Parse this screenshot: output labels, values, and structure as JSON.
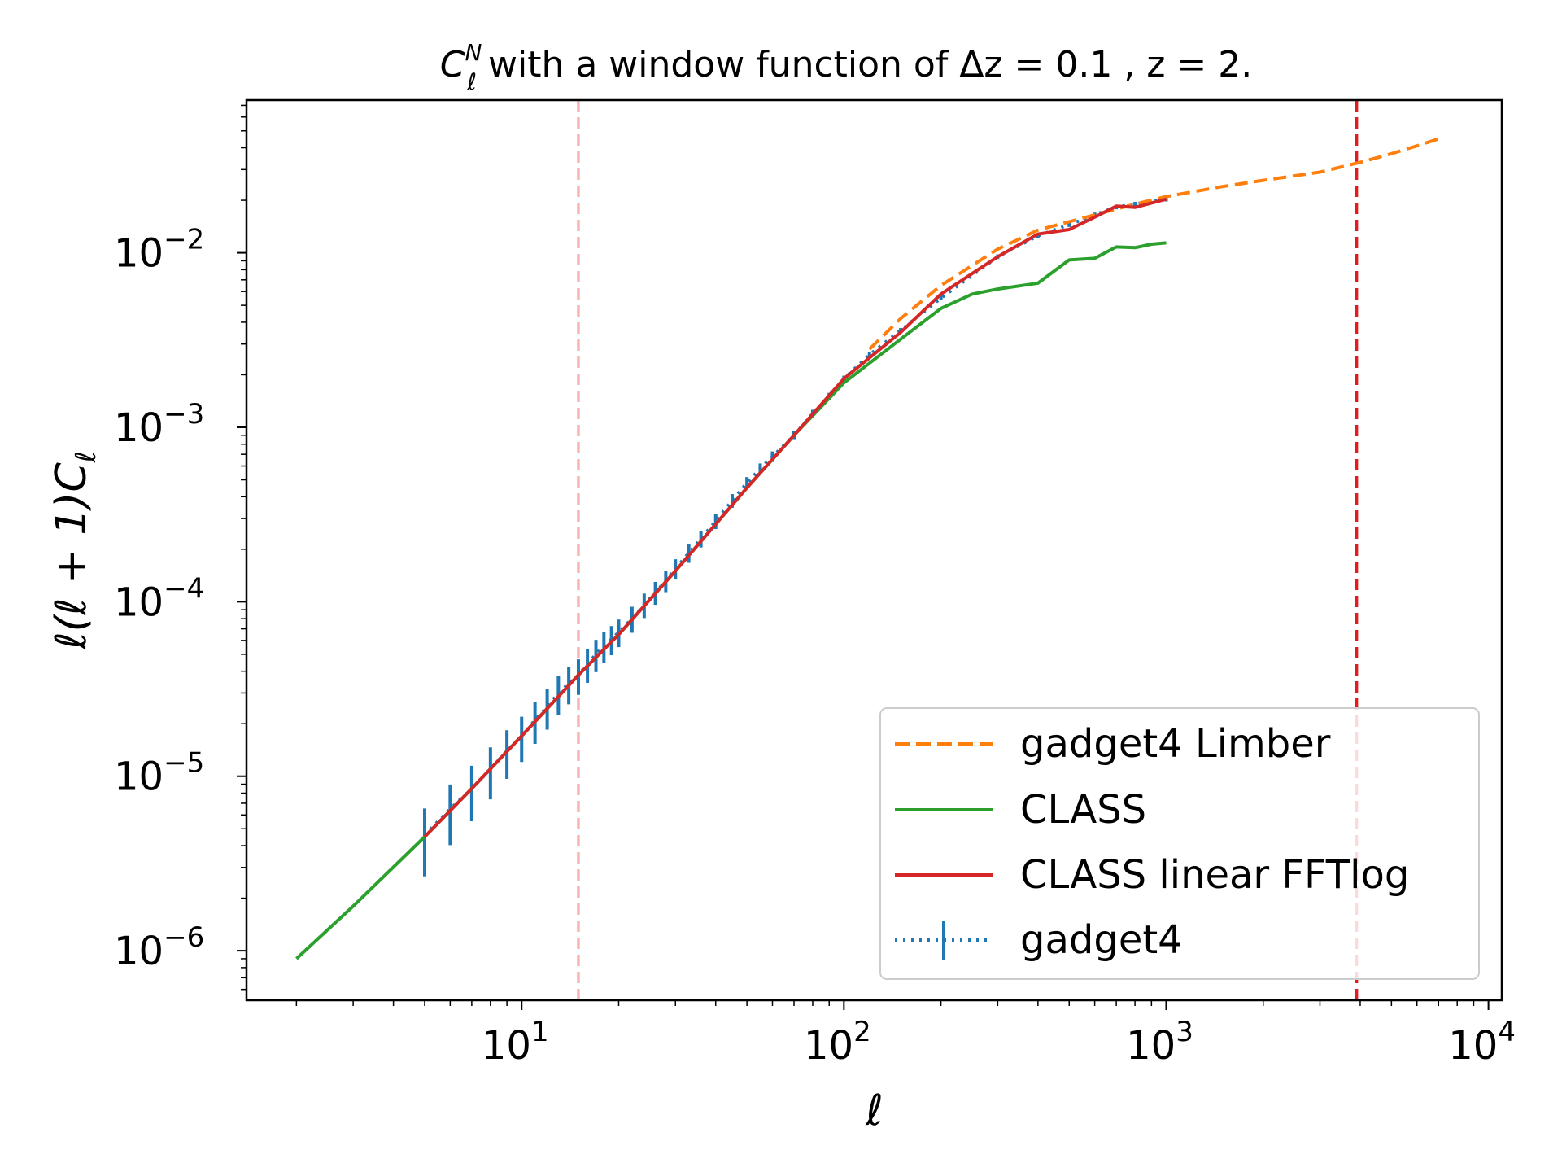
{
  "chart_data": {
    "type": "line",
    "title": "C_ℓ^N with a window function of Δz = 0.1 , z = 2.",
    "title_parts": {
      "symbol": "C",
      "superscript": "N",
      "subscript": "ℓ",
      "text1": "with a window function of",
      "dz": "Δz = 0.1",
      "sep": ",",
      "z": "z = 2."
    },
    "xlabel": "ℓ",
    "ylabel": "ℓ(ℓ + 1)C_ℓ",
    "ylabel_parts": {
      "main": "ℓ(ℓ + 1)C",
      "sub": "ℓ"
    },
    "xscale": "log",
    "yscale": "log",
    "xlim": [
      1.4,
      11000
    ],
    "ylim": [
      5.2e-07,
      0.075
    ],
    "x_ticks": [
      {
        "value": 10,
        "base": "10",
        "exp": "1"
      },
      {
        "value": 100,
        "base": "10",
        "exp": "2"
      },
      {
        "value": 1000,
        "base": "10",
        "exp": "3"
      },
      {
        "value": 10000,
        "base": "10",
        "exp": "4"
      }
    ],
    "y_ticks": [
      {
        "value": 1e-06,
        "base": "10",
        "exp": "−6"
      },
      {
        "value": 1e-05,
        "base": "10",
        "exp": "−5"
      },
      {
        "value": 0.0001,
        "base": "10",
        "exp": "−4"
      },
      {
        "value": 0.001,
        "base": "10",
        "exp": "−3"
      },
      {
        "value": 0.01,
        "base": "10",
        "exp": "−2"
      }
    ],
    "vertical_lines": [
      {
        "x": 15,
        "color": "#f8b4b4",
        "style": "dashed"
      },
      {
        "x": 3900,
        "color": "#e41a1c",
        "style": "dashed"
      }
    ],
    "series": [
      {
        "name": "gadget4 Limber",
        "color": "#ff7f0e",
        "style": "dashed",
        "x": [
          120,
          150,
          200,
          300,
          400,
          600,
          800,
          1000,
          1500,
          2000,
          3000,
          4000,
          5000,
          6000,
          7000
        ],
        "y": [
          0.0028,
          0.0042,
          0.0065,
          0.0105,
          0.0135,
          0.0165,
          0.019,
          0.021,
          0.024,
          0.026,
          0.029,
          0.033,
          0.037,
          0.041,
          0.045
        ]
      },
      {
        "name": "CLASS",
        "color": "#2ca02c",
        "style": "solid",
        "x": [
          2,
          3,
          5,
          7,
          10,
          15,
          20,
          30,
          50,
          70,
          100,
          150,
          200,
          250,
          300,
          400,
          500,
          600,
          700,
          800,
          900,
          1000
        ],
        "y": [
          9e-07,
          1.8e-06,
          4.5e-06,
          8.5e-06,
          1.7e-05,
          3.8e-05,
          6.5e-05,
          0.00015,
          0.00045,
          0.0009,
          0.0018,
          0.0032,
          0.0048,
          0.0058,
          0.0062,
          0.0067,
          0.0091,
          0.0093,
          0.0108,
          0.0107,
          0.0112,
          0.0114
        ]
      },
      {
        "name": "CLASS linear FFTlog",
        "color": "#d62728",
        "style": "solid",
        "x": [
          5,
          7,
          10,
          15,
          20,
          30,
          50,
          70,
          100,
          150,
          200,
          300,
          400,
          500,
          600,
          700,
          800,
          1000
        ],
        "y": [
          4.5e-06,
          8.5e-06,
          1.7e-05,
          3.8e-05,
          6.5e-05,
          0.00015,
          0.00045,
          0.0009,
          0.0019,
          0.0035,
          0.0058,
          0.0095,
          0.0128,
          0.0136,
          0.016,
          0.0185,
          0.0182,
          0.0203
        ]
      },
      {
        "name": "gadget4",
        "color": "#1f77b4",
        "style": "dotted-errorbar",
        "x": [
          5,
          6,
          7,
          8,
          9,
          10,
          11,
          12,
          13,
          14,
          15,
          16,
          17,
          18,
          19,
          20,
          22,
          24,
          26,
          28,
          30,
          33,
          36,
          40,
          45,
          50,
          55,
          60,
          70,
          80,
          90,
          100,
          120,
          150,
          200,
          300,
          400,
          500,
          600,
          700,
          800,
          1000
        ],
        "y": [
          4.6e-06,
          6.5e-06,
          8.5e-06,
          1.1e-05,
          1.4e-05,
          1.7e-05,
          2.1e-05,
          2.5e-05,
          3e-05,
          3.4e-05,
          3.8e-05,
          4.4e-05,
          5e-05,
          5.6e-05,
          6.1e-05,
          6.7e-05,
          8e-05,
          9.6e-05,
          0.000113,
          0.000132,
          0.000155,
          0.00019,
          0.00023,
          0.00029,
          0.00038,
          0.00048,
          0.00058,
          0.00068,
          0.0009,
          0.0012,
          0.0015,
          0.0019,
          0.0026,
          0.0036,
          0.0055,
          0.0095,
          0.0125,
          0.0145,
          0.0165,
          0.0183,
          0.019,
          0.0203
        ],
        "err_frac": [
          0.42,
          0.38,
          0.35,
          0.33,
          0.31,
          0.29,
          0.27,
          0.26,
          0.25,
          0.24,
          0.23,
          0.22,
          0.21,
          0.2,
          0.19,
          0.18,
          0.17,
          0.16,
          0.15,
          0.14,
          0.13,
          0.12,
          0.11,
          0.1,
          0.09,
          0.08,
          0.07,
          0.07,
          0.06,
          0.05,
          0.05,
          0.04,
          0.04,
          0.03,
          0.03,
          0.03,
          0.03,
          0.03,
          0.03,
          0.03,
          0.03,
          0.03
        ]
      }
    ],
    "legend": {
      "position": "lower-right",
      "entries": [
        "gadget4 Limber",
        "CLASS",
        "CLASS linear FFTlog",
        "gadget4"
      ]
    }
  }
}
